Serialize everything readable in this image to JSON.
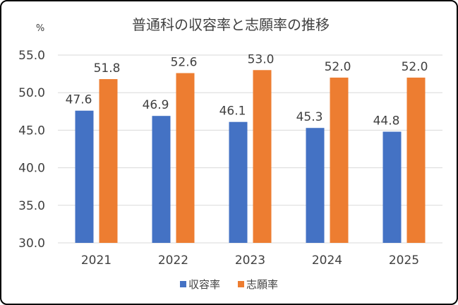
{
  "chart_data": {
    "type": "bar",
    "title": "普通科の収容率と志願率の推移",
    "ylabel": "%",
    "xlabel": "",
    "categories": [
      "2021",
      "2022",
      "2023",
      "2024",
      "2025"
    ],
    "series": [
      {
        "name": "収容率",
        "values": [
          47.6,
          46.9,
          46.1,
          45.3,
          44.8
        ],
        "color": "#4472c4"
      },
      {
        "name": "志願率",
        "values": [
          51.8,
          52.6,
          53.0,
          52.0,
          52.0
        ],
        "color": "#ed7d31"
      }
    ],
    "ylim": [
      30.0,
      55.0
    ],
    "yticks": [
      "30.0",
      "35.0",
      "40.0",
      "45.0",
      "50.0",
      "55.0"
    ],
    "grid": true,
    "legend": "bottom"
  }
}
